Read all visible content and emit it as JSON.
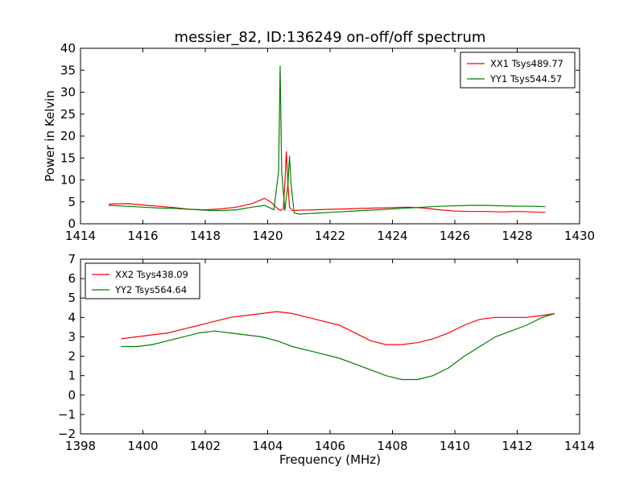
{
  "title": "messier_82, ID:136249 on-off/off spectrum",
  "colors": {
    "xx": "#ff0000",
    "yy": "#008000",
    "axis": "#000000",
    "background": "#ffffff"
  },
  "chart_data": [
    {
      "type": "line",
      "panel": "top",
      "ylabel": "Power in Kelvin",
      "xlabel": "",
      "xlim": [
        1414,
        1430
      ],
      "ylim": [
        0,
        40
      ],
      "xticks": [
        1414,
        1416,
        1418,
        1420,
        1422,
        1424,
        1426,
        1428,
        1430
      ],
      "yticks": [
        0,
        5,
        10,
        15,
        20,
        25,
        30,
        35,
        40
      ],
      "legend_position": "top-right",
      "series": [
        {
          "name": "XX1 Tsys489.77",
          "color": "#ff0000",
          "x": [
            1414.9,
            1415.5,
            1416.0,
            1416.5,
            1417.0,
            1417.5,
            1418.0,
            1418.5,
            1419.0,
            1419.5,
            1419.9,
            1420.1,
            1420.3,
            1420.4,
            1420.5,
            1420.55,
            1420.6,
            1420.65,
            1420.7,
            1420.8,
            1421.0,
            1421.5,
            1422.0,
            1422.5,
            1423.0,
            1423.5,
            1424.0,
            1424.5,
            1425.0,
            1425.5,
            1426.0,
            1426.5,
            1427.0,
            1427.5,
            1428.0,
            1428.5,
            1428.9
          ],
          "y": [
            4.5,
            4.6,
            4.3,
            4.0,
            3.7,
            3.3,
            3.2,
            3.4,
            3.8,
            4.6,
            5.8,
            5.0,
            3.6,
            3.0,
            3.3,
            9.0,
            16.5,
            9.0,
            3.8,
            3.0,
            3.1,
            3.2,
            3.3,
            3.4,
            3.5,
            3.6,
            3.7,
            3.8,
            3.6,
            3.2,
            2.9,
            2.8,
            2.8,
            2.7,
            2.8,
            2.7,
            2.6
          ]
        },
        {
          "name": "YY1 Tsys544.57",
          "color": "#008000",
          "x": [
            1414.9,
            1415.5,
            1416.0,
            1416.5,
            1417.0,
            1417.5,
            1418.0,
            1418.5,
            1419.0,
            1419.5,
            1419.9,
            1420.2,
            1420.35,
            1420.4,
            1420.45,
            1420.55,
            1420.65,
            1420.7,
            1420.75,
            1420.85,
            1421.0,
            1421.5,
            1422.0,
            1422.5,
            1423.0,
            1423.5,
            1424.0,
            1424.5,
            1425.0,
            1425.5,
            1426.0,
            1426.5,
            1427.0,
            1427.5,
            1428.0,
            1428.5,
            1428.9
          ],
          "y": [
            4.2,
            4.0,
            3.8,
            3.6,
            3.5,
            3.3,
            3.1,
            3.0,
            3.2,
            3.8,
            4.2,
            3.2,
            12.0,
            36.0,
            12.0,
            3.0,
            9.0,
            15.5,
            9.0,
            2.5,
            2.2,
            2.4,
            2.6,
            2.8,
            3.0,
            3.2,
            3.4,
            3.6,
            3.8,
            4.0,
            4.1,
            4.2,
            4.2,
            4.1,
            4.0,
            4.0,
            3.9
          ]
        }
      ]
    },
    {
      "type": "line",
      "panel": "bottom",
      "xlabel": "Frequency (MHz)",
      "ylabel": "",
      "xlim": [
        1398,
        1414
      ],
      "ylim": [
        -2,
        7
      ],
      "xticks": [
        1398,
        1400,
        1402,
        1404,
        1406,
        1408,
        1410,
        1412,
        1414
      ],
      "yticks": [
        -2,
        -1,
        0,
        1,
        2,
        3,
        4,
        5,
        6,
        7
      ],
      "legend_position": "top-left",
      "series": [
        {
          "name": "XX2 Tsys438.09",
          "color": "#ff0000",
          "x": [
            1399.3,
            1399.8,
            1400.3,
            1400.8,
            1401.3,
            1401.8,
            1402.3,
            1402.8,
            1403.3,
            1403.8,
            1404.3,
            1404.8,
            1405.3,
            1405.8,
            1406.3,
            1406.8,
            1407.3,
            1407.8,
            1408.3,
            1408.8,
            1409.3,
            1409.8,
            1410.3,
            1410.8,
            1411.3,
            1411.8,
            1412.3,
            1412.8,
            1413.2
          ],
          "y": [
            2.9,
            3.0,
            3.1,
            3.2,
            3.4,
            3.6,
            3.8,
            4.0,
            4.1,
            4.2,
            4.3,
            4.2,
            4.0,
            3.8,
            3.6,
            3.2,
            2.8,
            2.6,
            2.6,
            2.7,
            2.9,
            3.2,
            3.6,
            3.9,
            4.0,
            4.0,
            4.0,
            4.1,
            4.2
          ]
        },
        {
          "name": "YY2 Tsys564.64",
          "color": "#008000",
          "x": [
            1399.3,
            1399.8,
            1400.3,
            1400.8,
            1401.3,
            1401.8,
            1402.3,
            1402.8,
            1403.3,
            1403.8,
            1404.3,
            1404.8,
            1405.3,
            1405.8,
            1406.3,
            1406.8,
            1407.3,
            1407.8,
            1408.3,
            1408.8,
            1409.3,
            1409.8,
            1410.3,
            1410.8,
            1411.3,
            1411.8,
            1412.3,
            1412.8,
            1413.2
          ],
          "y": [
            2.5,
            2.5,
            2.6,
            2.8,
            3.0,
            3.2,
            3.3,
            3.2,
            3.1,
            3.0,
            2.8,
            2.5,
            2.3,
            2.1,
            1.9,
            1.6,
            1.3,
            1.0,
            0.8,
            0.8,
            1.0,
            1.4,
            2.0,
            2.5,
            3.0,
            3.3,
            3.6,
            4.0,
            4.2
          ]
        }
      ]
    }
  ]
}
